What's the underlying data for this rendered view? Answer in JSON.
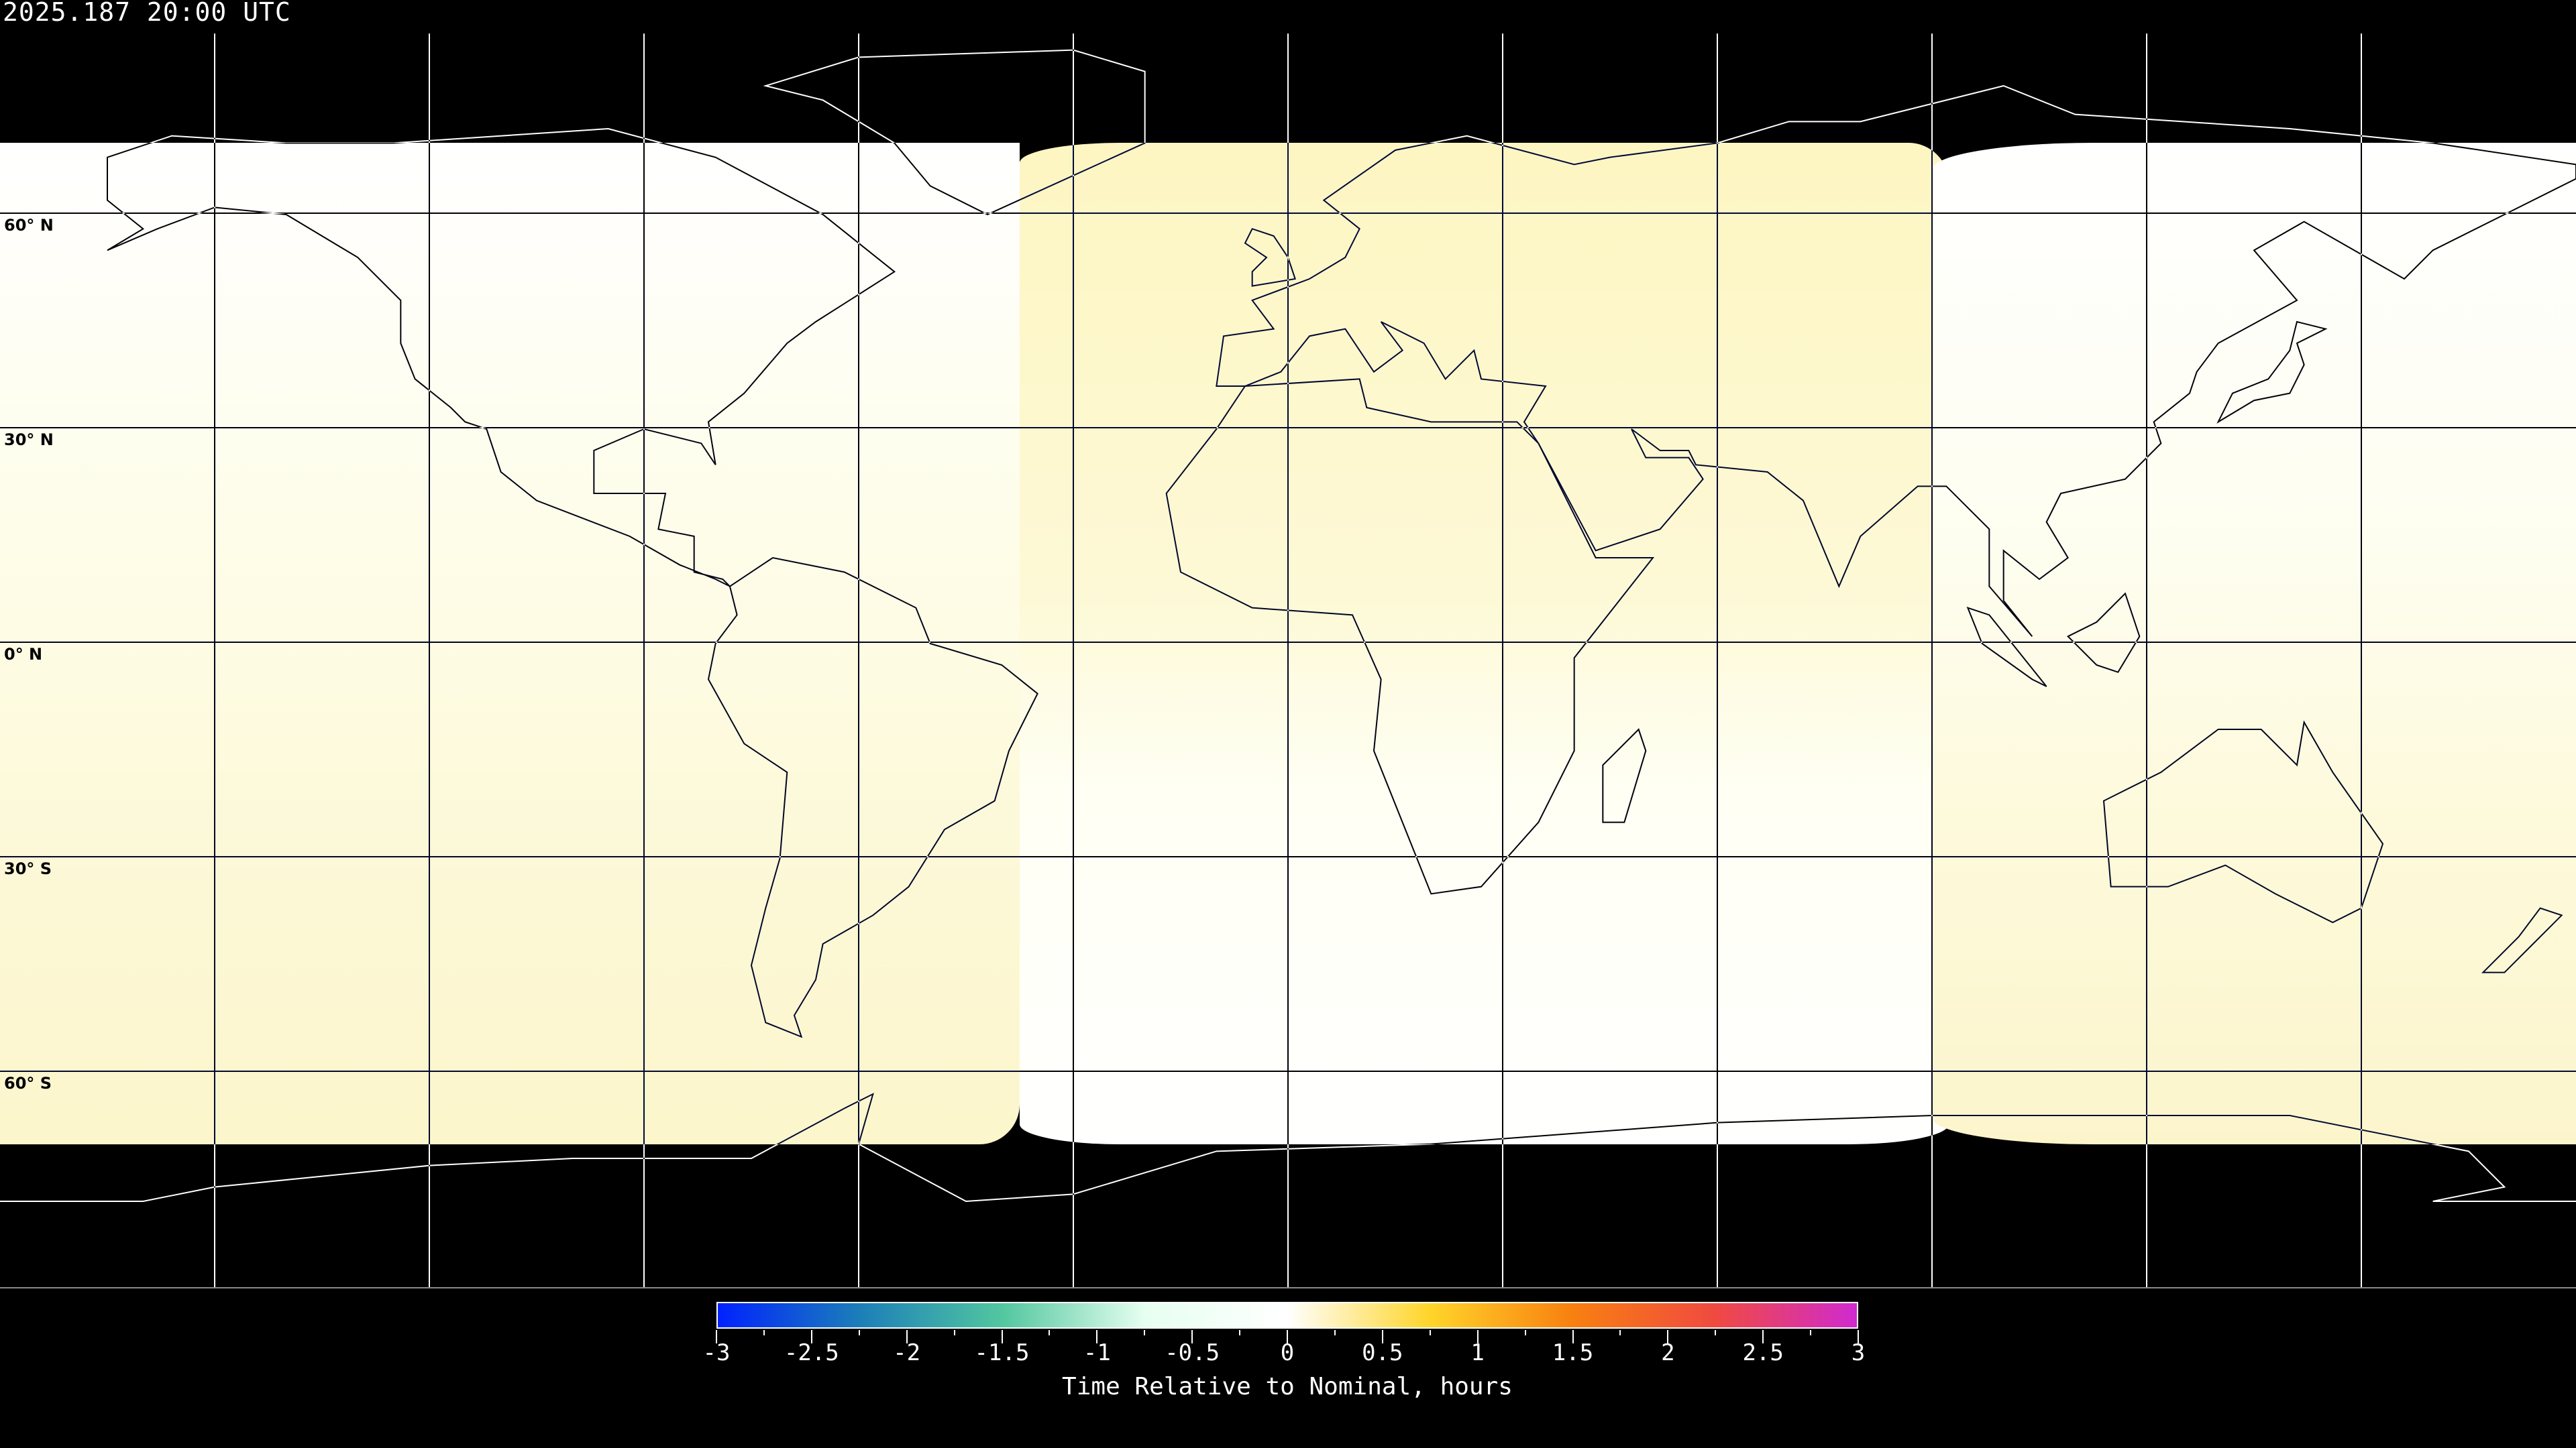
{
  "title": "2025.187 20:00 UTC",
  "map": {
    "projection": "equirectangular",
    "lat_labels": [
      "60° N",
      "30° N",
      "0° N",
      "30° S",
      "60° S"
    ],
    "gridline_spacing_deg": 30,
    "background": "#000000",
    "regions": [
      {
        "name": "west-footprint",
        "top_color": "#ffffff",
        "bottom_color": "#fcf6cc"
      },
      {
        "name": "center-footprint",
        "top_color": "#fdf6c2",
        "bottom_color": "#ffffff"
      },
      {
        "name": "east-footprint",
        "top_color": "#ffffff",
        "bottom_color": "#fcf5cc"
      }
    ]
  },
  "colorbar": {
    "label": "Time Relative to Nominal, hours",
    "ticks": [
      "-3",
      "-2.5",
      "-2",
      "-1.5",
      "-1",
      "-0.5",
      "0",
      "0.5",
      "1",
      "1.5",
      "2",
      "2.5",
      "3"
    ],
    "range": [
      -3,
      3
    ],
    "colors": [
      "#0022ff",
      "#1c7fb8",
      "#52c7a0",
      "#e6fff0",
      "#ffffff",
      "#ffd52a",
      "#f88010",
      "#f04a40",
      "#d02ad0"
    ]
  }
}
